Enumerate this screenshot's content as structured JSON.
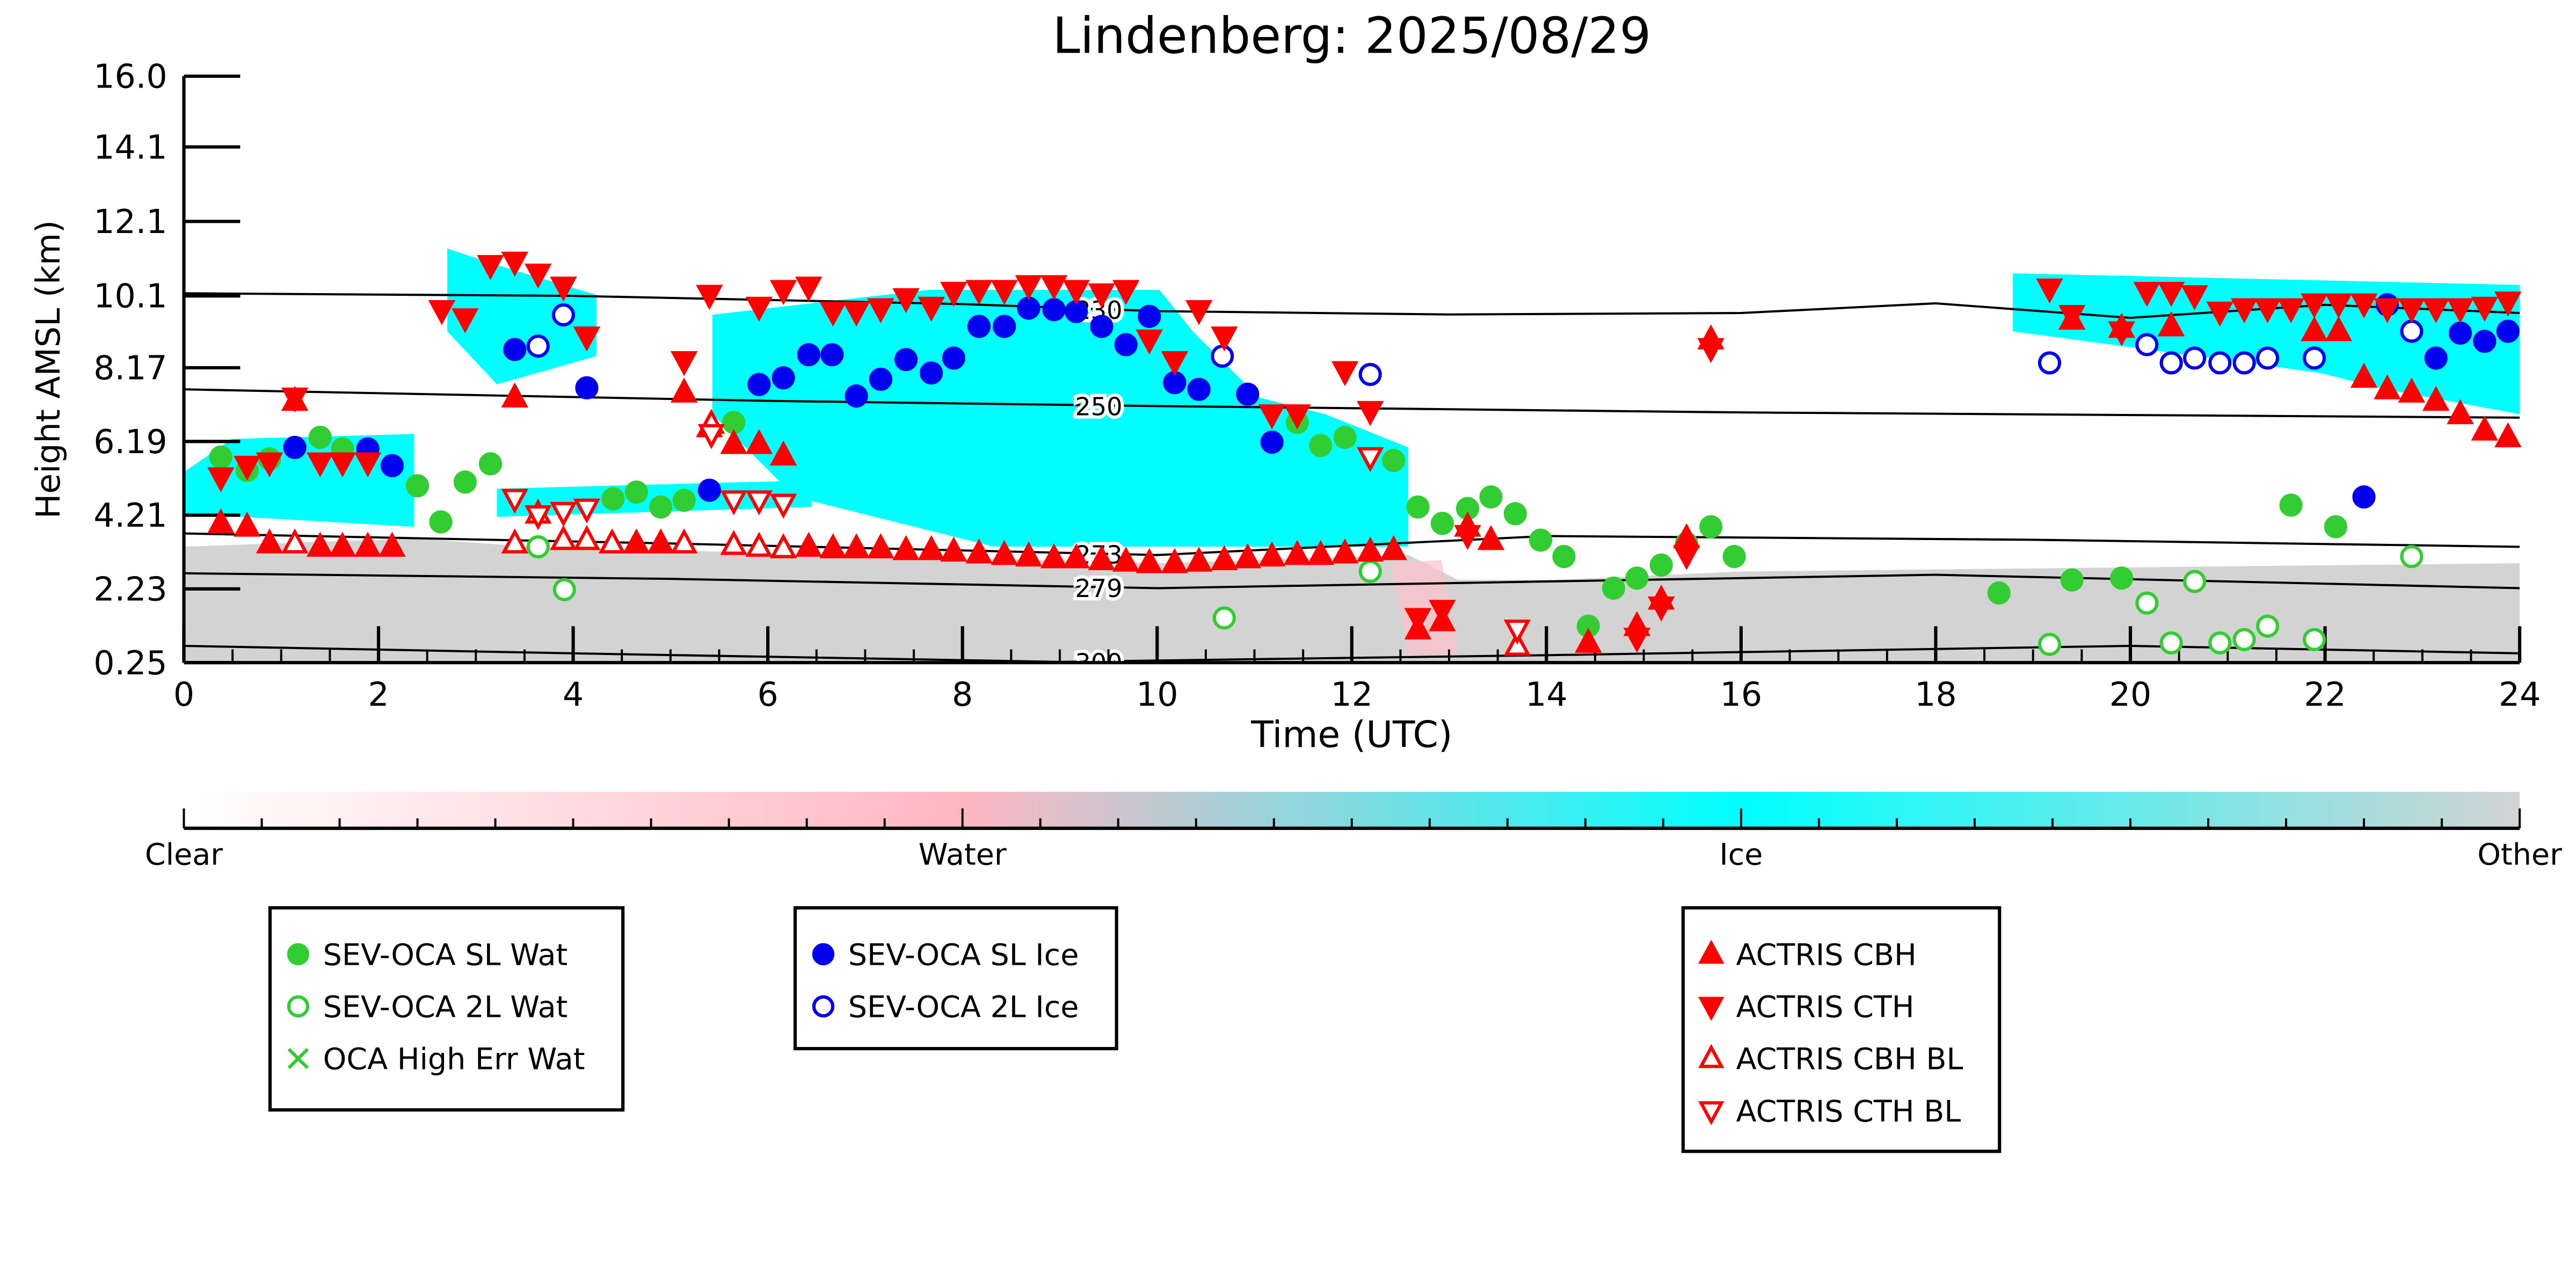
{
  "chart_data": {
    "type": "scatter",
    "title": "Lindenberg: 2025/08/29",
    "xlabel": "Time (UTC)",
    "ylabel": "Height AMSL (km)",
    "xlim": [
      0,
      24
    ],
    "xticks": [
      0,
      2,
      4,
      6,
      8,
      10,
      12,
      14,
      16,
      18,
      20,
      22,
      24
    ],
    "ylim": [
      0.25,
      16
    ],
    "yticks": [
      0.25,
      2.23,
      4.21,
      6.19,
      8.17,
      10.1,
      12.1,
      14.1,
      {
        "value": 16,
        "label": "16.0"
      }
    ],
    "colorbar": {
      "labels": [
        "Clear",
        "Water",
        "Ice",
        "Other"
      ],
      "colors": [
        "#ffffff",
        "#ffb6c1",
        "#00ffff",
        "#d3d3d3"
      ]
    },
    "contours": [
      {
        "label": "230",
        "x": [
          0,
          4,
          8,
          10,
          13,
          16,
          18,
          20,
          22,
          24
        ],
        "y": [
          10.17,
          10.1,
          9.88,
          9.69,
          9.6,
          9.64,
          9.9,
          9.51,
          9.86,
          9.64
        ]
      },
      {
        "label": "250",
        "x": [
          0,
          6,
          10,
          16,
          24
        ],
        "y": [
          7.59,
          7.28,
          7.14,
          6.97,
          6.83
        ]
      },
      {
        "label": "273",
        "x": [
          0,
          5,
          10,
          14,
          19,
          24
        ],
        "y": [
          3.72,
          3.45,
          3.14,
          3.65,
          3.55,
          3.36
        ]
      },
      {
        "label": "279",
        "x": [
          0,
          5,
          10,
          18,
          24
        ],
        "y": [
          2.65,
          2.5,
          2.25,
          2.61,
          2.25
        ]
      },
      {
        "label": "300",
        "x": [
          0,
          4,
          9,
          14,
          20,
          24
        ],
        "y": [
          0.7,
          0.5,
          0.27,
          0.45,
          0.7,
          0.5
        ]
      }
    ],
    "series": [
      {
        "name": "SEV-OCA SL Wat",
        "color": "#32cd32",
        "marker": "circle",
        "filled": true,
        "x": [
          0.38,
          0.65,
          0.88,
          1.4,
          1.63,
          2.4,
          2.64,
          2.89,
          3.15,
          4.41,
          4.65,
          4.9,
          5.14,
          5.65,
          11.44,
          11.68,
          11.93,
          12.43,
          12.68,
          12.93,
          13.19,
          13.43,
          13.68,
          13.94,
          14.18,
          14.43,
          14.69,
          14.93,
          15.18,
          15.44,
          15.69,
          15.93,
          18.65,
          19.4,
          19.91,
          21.65,
          22.11
        ],
        "values": [
          5.77,
          5.41,
          5.72,
          6.3,
          5.99,
          5.0,
          4.03,
          5.1,
          5.59,
          4.65,
          4.83,
          4.43,
          4.61,
          6.7,
          6.7,
          6.08,
          6.3,
          5.68,
          4.43,
          3.99,
          4.39,
          4.7,
          4.25,
          3.54,
          3.1,
          1.23,
          2.25,
          2.52,
          2.87,
          3.45,
          3.9,
          3.1,
          2.12,
          2.47,
          2.52,
          4.48,
          3.9
        ]
      },
      {
        "name": "SEV-OCA 2L Wat",
        "color": "#32cd32",
        "marker": "circle",
        "filled": false,
        "x": [
          3.64,
          3.91,
          10.69,
          12.19,
          19.17,
          20.17,
          20.42,
          20.66,
          20.92,
          21.17,
          21.41,
          21.89,
          22.89
        ],
        "values": [
          3.36,
          2.21,
          1.45,
          2.7,
          0.74,
          1.85,
          0.78,
          2.43,
          0.78,
          0.87,
          1.23,
          0.87,
          3.1
        ]
      },
      {
        "name": "OCA High Err Wat",
        "color": "#32cd32",
        "marker": "x",
        "filled": true,
        "x": [],
        "values": []
      },
      {
        "name": "SEV-OCA SL Ice",
        "color": "#0000ee",
        "marker": "circle",
        "filled": true,
        "x": [
          1.14,
          1.89,
          2.14,
          3.4,
          4.14,
          5.4,
          5.91,
          6.16,
          6.42,
          6.66,
          6.91,
          7.16,
          7.42,
          7.68,
          7.91,
          8.17,
          8.43,
          8.68,
          8.94,
          9.17,
          9.43,
          9.68,
          9.92,
          10.18,
          10.43,
          10.93,
          11.18,
          22.4,
          22.64,
          23.14,
          23.39,
          23.64,
          23.88
        ],
        "values": [
          6.03,
          5.99,
          5.54,
          8.66,
          7.63,
          4.88,
          7.72,
          7.9,
          8.52,
          8.52,
          7.41,
          7.86,
          8.39,
          8.03,
          8.43,
          9.28,
          9.28,
          9.77,
          9.73,
          9.68,
          9.28,
          8.79,
          9.55,
          7.77,
          7.59,
          7.46,
          6.17,
          4.7,
          9.86,
          8.43,
          9.1,
          8.88,
          9.15
        ]
      },
      {
        "name": "SEV-OCA 2L Ice",
        "color": "#0000ee",
        "marker": "circle",
        "filled": false,
        "x": [
          3.64,
          3.9,
          10.67,
          12.19,
          19.17,
          20.17,
          20.42,
          20.66,
          20.92,
          21.17,
          21.41,
          21.89,
          22.89
        ],
        "values": [
          8.75,
          9.59,
          8.48,
          7.99,
          8.3,
          8.79,
          8.3,
          8.43,
          8.3,
          8.3,
          8.43,
          8.43,
          9.15
        ]
      },
      {
        "name": "ACTRIS CBH",
        "color": "#ff0000",
        "marker": "triangle-up",
        "filled": true,
        "x": [
          0.38,
          0.65,
          0.88,
          1.14,
          1.4,
          1.63,
          1.89,
          2.14,
          3.4,
          4.4,
          4.65,
          4.9,
          5.14,
          5.4,
          5.65,
          5.91,
          6.16,
          6.42,
          6.67,
          6.91,
          7.16,
          7.42,
          7.68,
          7.91,
          8.17,
          8.43,
          8.68,
          8.94,
          9.17,
          9.43,
          9.68,
          9.92,
          10.18,
          10.43,
          10.69,
          10.93,
          11.18,
          11.44,
          11.68,
          11.93,
          12.19,
          12.43,
          12.68,
          12.93,
          13.19,
          13.43,
          14.43,
          14.93,
          15.18,
          15.44,
          15.69,
          19.4,
          19.91,
          20.42,
          21.89,
          22.14,
          22.4,
          22.64,
          22.89,
          23.14,
          23.39,
          23.64,
          23.88
        ],
        "values": [
          3.99,
          3.9,
          3.45,
          7.28,
          3.36,
          3.36,
          3.36,
          3.36,
          7.37,
          3.45,
          3.45,
          3.45,
          7.5,
          6.57,
          6.12,
          6.12,
          5.81,
          3.36,
          3.32,
          3.32,
          3.32,
          3.27,
          3.27,
          3.23,
          3.18,
          3.14,
          3.1,
          3.05,
          3.05,
          3.0,
          2.96,
          2.92,
          2.92,
          2.96,
          3.0,
          3.05,
          3.1,
          3.14,
          3.14,
          3.18,
          3.23,
          3.27,
          1.14,
          1.36,
          3.9,
          3.54,
          0.78,
          1.23,
          1.94,
          3.59,
          8.93,
          9.46,
          9.24,
          9.28,
          9.15,
          9.15,
          7.9,
          7.59,
          7.5,
          7.28,
          6.92,
          6.48,
          6.3
        ]
      },
      {
        "name": "ACTRIS CTH",
        "color": "#ff0000",
        "marker": "triangle-down",
        "filled": true,
        "x": [
          0.38,
          0.65,
          0.88,
          1.14,
          1.4,
          1.63,
          1.89,
          2.65,
          2.89,
          3.15,
          3.4,
          3.64,
          3.9,
          4.14,
          5.14,
          5.4,
          5.91,
          6.16,
          6.42,
          6.67,
          6.91,
          7.16,
          7.42,
          7.68,
          7.91,
          8.17,
          8.43,
          8.68,
          8.94,
          9.17,
          9.43,
          9.68,
          9.92,
          10.18,
          10.43,
          10.69,
          11.18,
          11.44,
          11.93,
          12.19,
          12.68,
          12.93,
          13.19,
          14.93,
          15.18,
          15.44,
          15.69,
          19.17,
          19.4,
          19.91,
          20.17,
          20.42,
          20.66,
          20.92,
          21.17,
          21.41,
          21.65,
          21.89,
          22.14,
          22.4,
          22.64,
          22.89,
          23.14,
          23.39,
          23.64,
          23.88
        ],
        "values": [
          5.23,
          5.54,
          5.63,
          7.37,
          5.63,
          5.63,
          5.63,
          9.72,
          9.5,
          10.93,
          11.02,
          10.7,
          10.35,
          9.01,
          8.35,
          10.13,
          9.81,
          10.26,
          10.35,
          9.68,
          9.68,
          9.77,
          10.04,
          9.81,
          10.21,
          10.26,
          10.26,
          10.39,
          10.39,
          10.26,
          10.17,
          10.26,
          8.93,
          8.35,
          9.72,
          9.01,
          6.92,
          6.92,
          8.08,
          7.01,
          1.45,
          1.67,
          3.68,
          0.92,
          1.76,
          3.14,
          8.7,
          10.3,
          9.59,
          9.15,
          10.21,
          10.21,
          10.12,
          9.68,
          9.77,
          9.77,
          9.77,
          9.9,
          9.9,
          9.9,
          9.77,
          9.77,
          9.77,
          9.77,
          9.81,
          9.95
        ]
      },
      {
        "name": "ACTRIS CBH BL",
        "color": "#ff0000",
        "marker": "triangle-up",
        "filled": false,
        "x": [
          1.14,
          3.4,
          3.64,
          3.9,
          4.14,
          4.4,
          5.14,
          5.42,
          5.65,
          5.91,
          6.16,
          13.7
        ],
        "values": [
          3.45,
          3.45,
          4.25,
          3.54,
          3.54,
          3.45,
          3.45,
          6.66,
          3.41,
          3.36,
          3.32,
          0.7
        ]
      },
      {
        "name": "ACTRIS CTH BL",
        "color": "#ff0000",
        "marker": "triangle-down",
        "filled": false,
        "x": [
          3.4,
          3.64,
          3.9,
          4.14,
          5.42,
          5.65,
          5.91,
          6.16,
          12.19,
          13.7
        ],
        "values": [
          4.65,
          4.21,
          4.3,
          4.39,
          6.39,
          4.61,
          4.61,
          4.52,
          5.77,
          1.14
        ]
      }
    ]
  }
}
